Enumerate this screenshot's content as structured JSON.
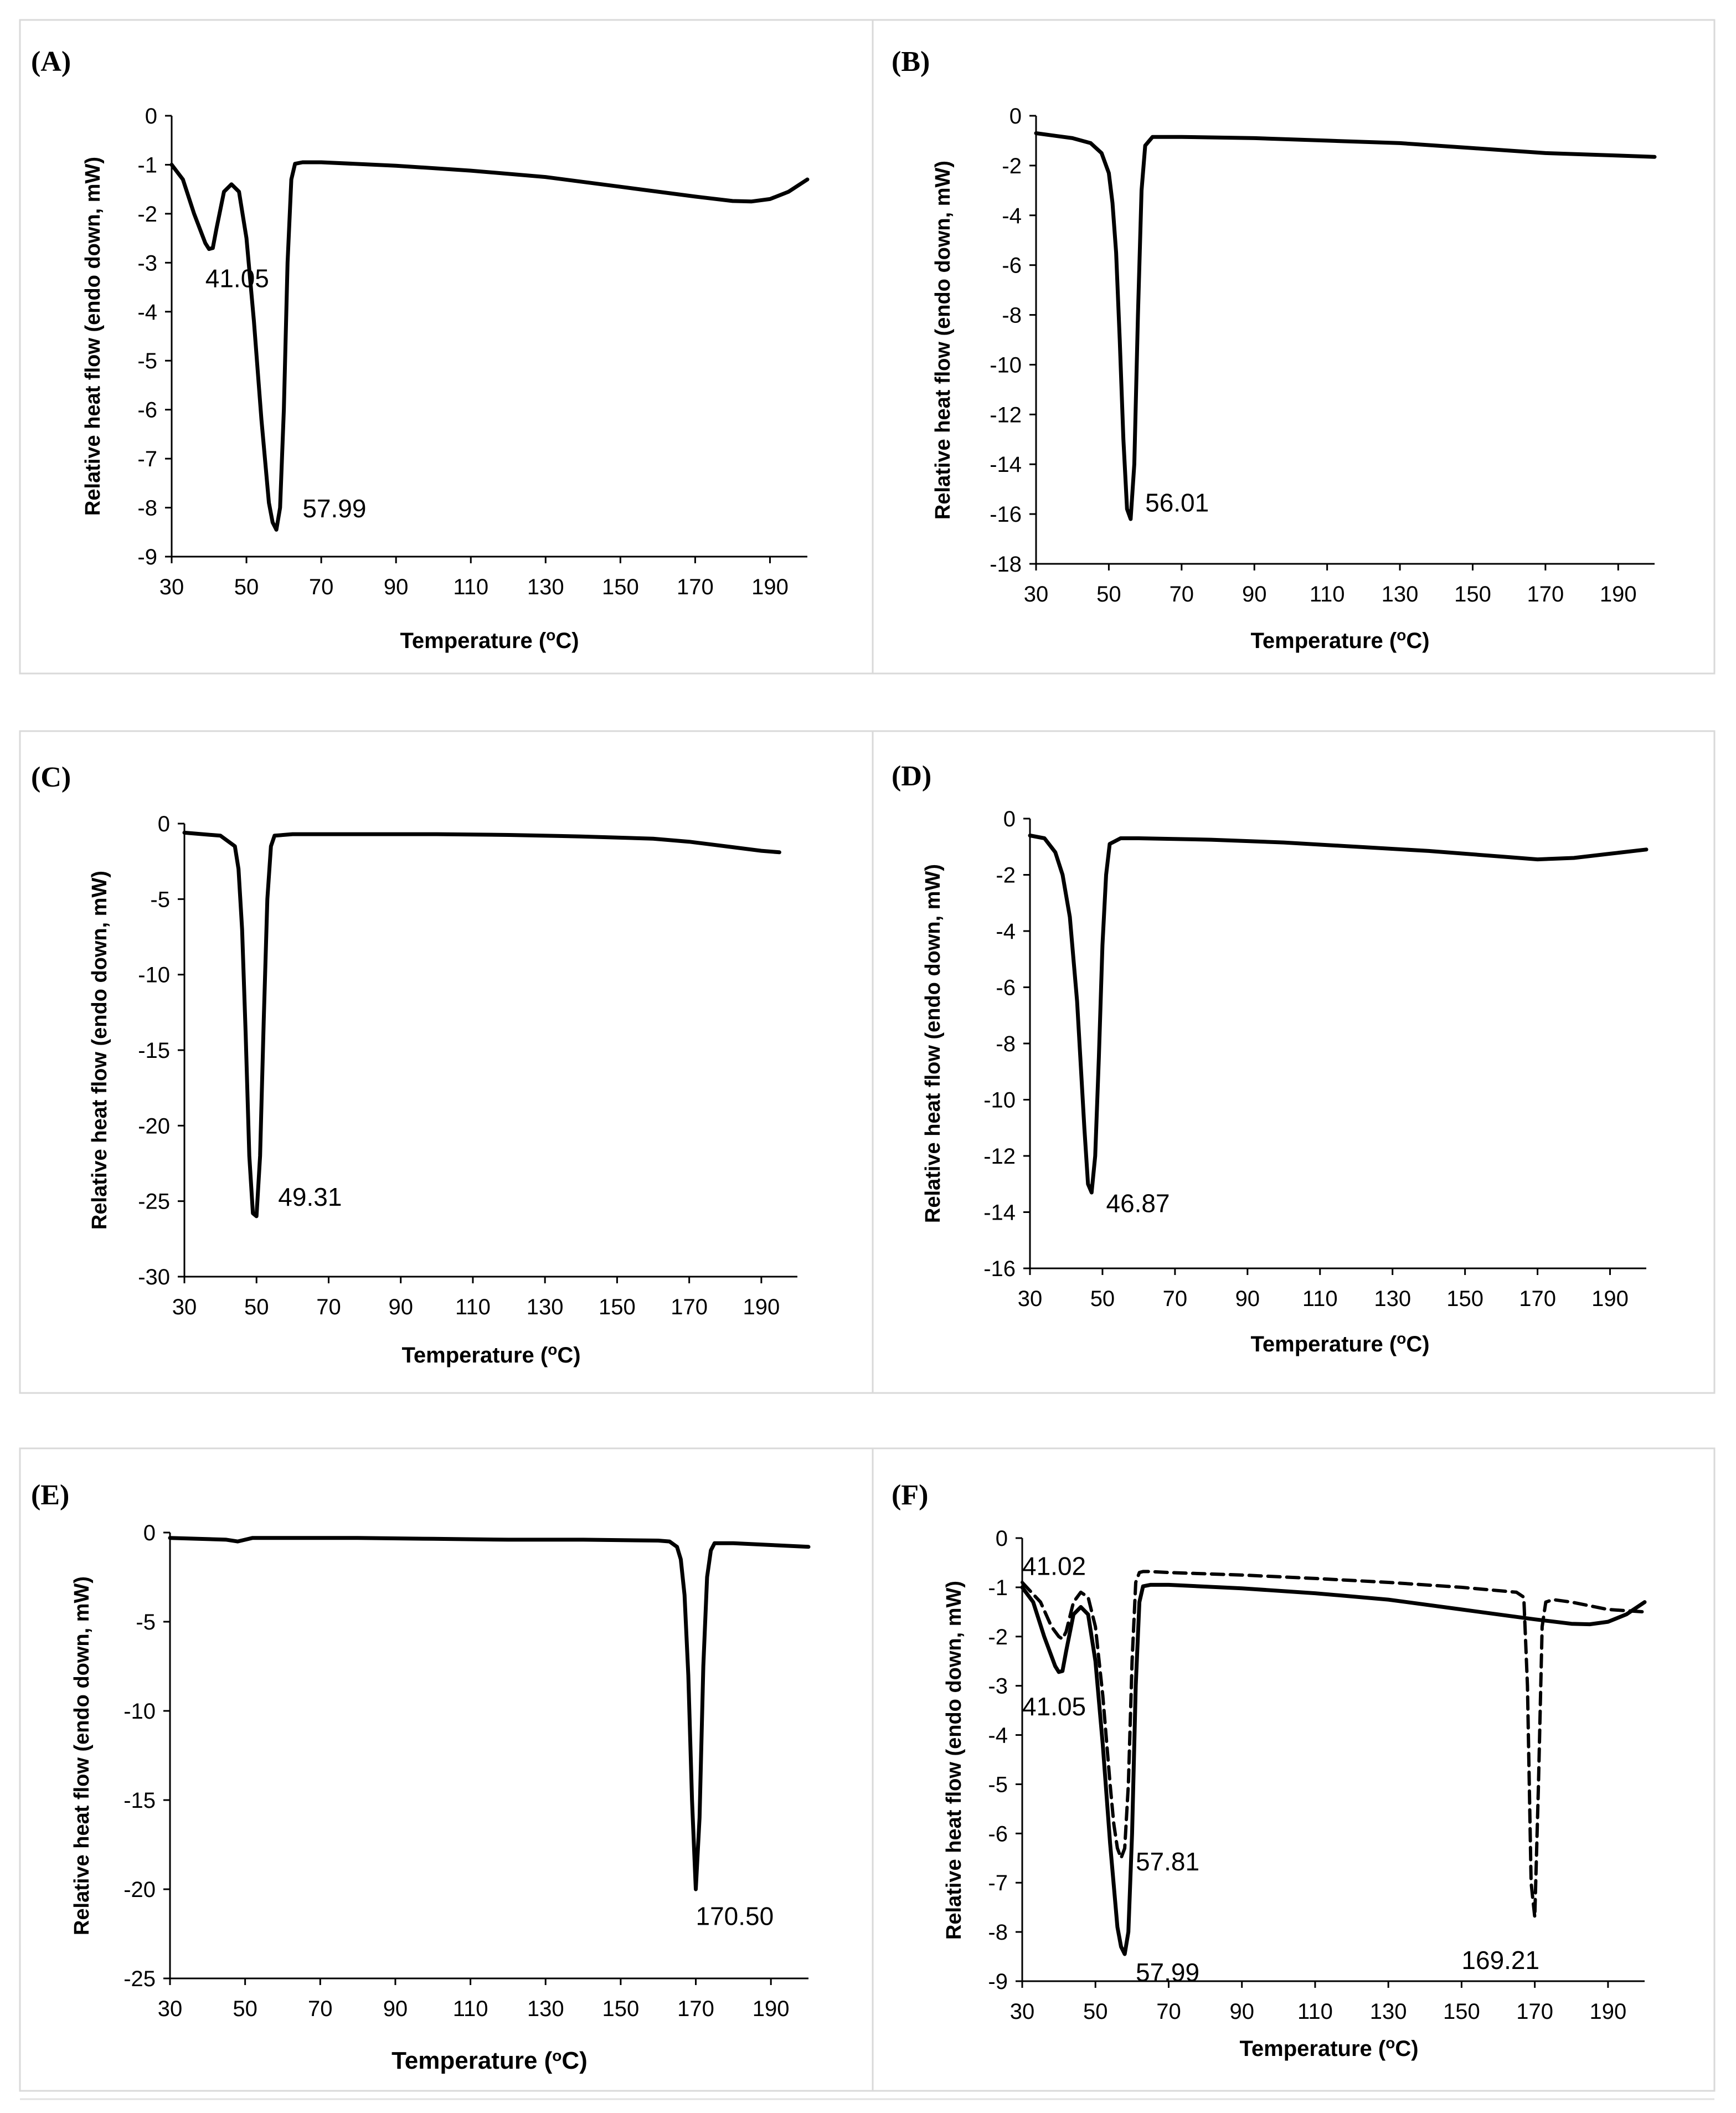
{
  "chart_data": [
    {
      "type": "line",
      "panel_label": "(A)",
      "xlabel": "Temperature (",
      "xlabel_sup": "o",
      "xlabel_unit": "C)",
      "ylabel": "Relative  heat flow (endo down, mW)",
      "xlim": [
        30,
        200
      ],
      "ylim": [
        -9,
        0
      ],
      "xticks": [
        "30",
        "50",
        "70",
        "90",
        "110",
        "130",
        "150",
        "170",
        "190"
      ],
      "yticks": [
        "0",
        "-1",
        "-2",
        "-3",
        "-4",
        "-5",
        "-6",
        "-7",
        "-8",
        "-9"
      ],
      "series": [
        {
          "name": "curve",
          "style": "solid",
          "x": [
            30,
            33,
            36,
            39,
            40,
            41,
            42,
            44,
            46,
            48,
            50,
            52,
            54,
            56,
            57,
            58,
            59,
            60,
            61,
            62,
            63,
            65,
            70,
            90,
            110,
            130,
            150,
            170,
            180,
            185,
            190,
            195,
            200
          ],
          "y": [
            -1.0,
            -1.3,
            -2.0,
            -2.6,
            -2.72,
            -2.7,
            -2.3,
            -1.55,
            -1.4,
            -1.55,
            -2.5,
            -4.2,
            -6.2,
            -7.9,
            -8.3,
            -8.45,
            -8.0,
            -6.0,
            -3.0,
            -1.3,
            -0.98,
            -0.95,
            -0.95,
            -1.02,
            -1.12,
            -1.25,
            -1.45,
            -1.65,
            -1.74,
            -1.75,
            -1.7,
            -1.55,
            -1.3
          ]
        }
      ],
      "annotations": [
        {
          "text": "41.05",
          "x": 39,
          "y": -3.5
        },
        {
          "text": "57.99",
          "x": 65,
          "y": -8.2
        }
      ]
    },
    {
      "type": "line",
      "panel_label": "(B)",
      "xlabel": "Temperature (",
      "xlabel_sup": "o",
      "xlabel_unit": "C)",
      "ylabel": "Relative  heat flow (endo down, mW)",
      "xlim": [
        30,
        200
      ],
      "ylim": [
        -18,
        0
      ],
      "xticks": [
        "30",
        "50",
        "70",
        "90",
        "110",
        "130",
        "150",
        "170",
        "190"
      ],
      "yticks": [
        "0",
        "-2",
        "-4",
        "-6",
        "-8",
        "-10",
        "-12",
        "-14",
        "-16",
        "-18"
      ],
      "series": [
        {
          "name": "curve",
          "style": "solid",
          "x": [
            30,
            40,
            45,
            48,
            50,
            51,
            52,
            53,
            54,
            55,
            56,
            57,
            58,
            59,
            60,
            62,
            70,
            90,
            110,
            130,
            150,
            170,
            190,
            200
          ],
          "y": [
            -0.7,
            -0.9,
            -1.1,
            -1.5,
            -2.3,
            -3.5,
            -5.5,
            -9.0,
            -13.0,
            -15.8,
            -16.2,
            -14.0,
            -8.0,
            -3.0,
            -1.2,
            -0.85,
            -0.85,
            -0.9,
            -1.0,
            -1.1,
            -1.3,
            -1.5,
            -1.6,
            -1.65
          ]
        }
      ],
      "annotations": [
        {
          "text": "56.01",
          "x": 60,
          "y": -15.9
        }
      ]
    },
    {
      "type": "line",
      "panel_label": "(C)",
      "xlabel": "Temperature (",
      "xlabel_sup": "o",
      "xlabel_unit": "C)",
      "ylabel": "Relative  heat flow (endo down, mW)",
      "xlim": [
        30,
        200
      ],
      "ylim": [
        -30,
        0
      ],
      "xticks": [
        "30",
        "50",
        "70",
        "90",
        "110",
        "130",
        "150",
        "170",
        "190"
      ],
      "yticks": [
        "0",
        "-5",
        "-10",
        "-15",
        "-20",
        "-25",
        "-30"
      ],
      "series": [
        {
          "name": "curve",
          "style": "solid",
          "x": [
            30,
            40,
            44,
            45,
            46,
            47,
            48,
            49,
            50,
            51,
            52,
            53,
            54,
            55,
            60,
            80,
            100,
            120,
            140,
            160,
            170,
            180,
            190,
            195
          ],
          "y": [
            -0.6,
            -0.8,
            -1.5,
            -3.0,
            -7.0,
            -14.0,
            -22.0,
            -25.8,
            -26.0,
            -22.0,
            -13.0,
            -5.0,
            -1.5,
            -0.8,
            -0.7,
            -0.7,
            -0.7,
            -0.75,
            -0.85,
            -1.0,
            -1.2,
            -1.5,
            -1.8,
            -1.9
          ]
        }
      ],
      "annotations": [
        {
          "text": "49.31",
          "x": 56,
          "y": -25.3
        }
      ]
    },
    {
      "type": "line",
      "panel_label": "(D)",
      "xlabel": "Temperature (",
      "xlabel_sup": "o",
      "xlabel_unit": "C)",
      "ylabel": "Relative  heat flow (endo down, mW)",
      "xlim": [
        30,
        200
      ],
      "ylim": [
        -16,
        0
      ],
      "xticks": [
        "30",
        "50",
        "70",
        "90",
        "110",
        "130",
        "150",
        "170",
        "190"
      ],
      "yticks": [
        "0",
        "-2",
        "-4",
        "-6",
        "-8",
        "-10",
        "-12",
        "-14",
        "-16"
      ],
      "series": [
        {
          "name": "curve",
          "style": "solid",
          "x": [
            30,
            34,
            37,
            39,
            41,
            43,
            45,
            46,
            47,
            48,
            49,
            50,
            51,
            52,
            55,
            60,
            80,
            100,
            120,
            140,
            160,
            170,
            180,
            190,
            200
          ],
          "y": [
            -0.6,
            -0.7,
            -1.2,
            -2.0,
            -3.5,
            -6.5,
            -11.0,
            -13.0,
            -13.3,
            -12.0,
            -8.5,
            -4.5,
            -2.0,
            -0.9,
            -0.7,
            -0.7,
            -0.75,
            -0.85,
            -1.0,
            -1.15,
            -1.35,
            -1.45,
            -1.4,
            -1.25,
            -1.1
          ]
        }
      ],
      "annotations": [
        {
          "text": "46.87",
          "x": 51,
          "y": -14.0
        }
      ]
    },
    {
      "type": "line",
      "panel_label": "(E)",
      "xlabel": "Temperature (",
      "xlabel_sup": "o",
      "xlabel_unit": "C)",
      "ylabel": "Relative  heat flow (endo down, mW)",
      "xlim": [
        30,
        200
      ],
      "ylim": [
        -25,
        0
      ],
      "xticks": [
        "30",
        "50",
        "70",
        "90",
        "110",
        "130",
        "150",
        "170",
        "190"
      ],
      "yticks": [
        "0",
        "-5",
        "-10",
        "-15",
        "-20",
        "-25"
      ],
      "series": [
        {
          "name": "curve",
          "style": "solid",
          "x": [
            30,
            45,
            48,
            52,
            60,
            80,
            100,
            120,
            140,
            160,
            163,
            165,
            166,
            167,
            168,
            169,
            170,
            171,
            172,
            173,
            174,
            175,
            180,
            190,
            200
          ],
          "y": [
            -0.3,
            -0.4,
            -0.5,
            -0.3,
            -0.3,
            -0.3,
            -0.35,
            -0.4,
            -0.4,
            -0.45,
            -0.5,
            -0.8,
            -1.5,
            -3.5,
            -8.0,
            -15.0,
            -20.0,
            -16.0,
            -7.5,
            -2.5,
            -1.0,
            -0.6,
            -0.6,
            -0.7,
            -0.8
          ]
        }
      ],
      "annotations": [
        {
          "text": "170.50",
          "x": 170,
          "y": -22
        }
      ]
    },
    {
      "type": "line",
      "panel_label": "(F)",
      "xlabel": "Temperature (",
      "xlabel_sup": "o",
      "xlabel_unit": "C)",
      "ylabel": "Relative  heat flow (endo down, mW)",
      "xlim": [
        30,
        200
      ],
      "ylim": [
        -9,
        0
      ],
      "xticks": [
        "30",
        "50",
        "70",
        "90",
        "110",
        "130",
        "150",
        "170",
        "190"
      ],
      "yticks": [
        "0",
        "-1",
        "-2",
        "-3",
        "-4",
        "-5",
        "-6",
        "-7",
        "-8",
        "-9"
      ],
      "series": [
        {
          "name": "solid",
          "style": "solid",
          "x": [
            30,
            33,
            36,
            39,
            40,
            41,
            42,
            44,
            46,
            48,
            50,
            52,
            54,
            56,
            57,
            58,
            59,
            60,
            61,
            62,
            63,
            65,
            70,
            90,
            110,
            130,
            150,
            170,
            180,
            185,
            190,
            195,
            200
          ],
          "y": [
            -1.0,
            -1.3,
            -2.0,
            -2.6,
            -2.72,
            -2.7,
            -2.3,
            -1.55,
            -1.4,
            -1.55,
            -2.5,
            -4.2,
            -6.2,
            -7.9,
            -8.3,
            -8.45,
            -8.0,
            -6.0,
            -3.0,
            -1.3,
            -0.98,
            -0.95,
            -0.95,
            -1.02,
            -1.12,
            -1.25,
            -1.45,
            -1.65,
            -1.74,
            -1.75,
            -1.7,
            -1.55,
            -1.3
          ]
        },
        {
          "name": "dashed",
          "style": "dashed",
          "x": [
            30,
            35,
            38,
            40,
            41,
            42,
            44,
            46,
            48,
            50,
            52,
            54,
            55,
            56,
            57,
            58,
            59,
            60,
            61,
            62,
            63,
            65,
            70,
            90,
            110,
            130,
            150,
            165,
            167,
            168,
            169,
            170,
            171,
            172,
            173,
            175,
            180,
            190,
            200
          ],
          "y": [
            -0.9,
            -1.3,
            -1.8,
            -2.0,
            -2.05,
            -1.9,
            -1.3,
            -1.1,
            -1.2,
            -1.8,
            -3.2,
            -5.0,
            -5.8,
            -6.3,
            -6.5,
            -6.3,
            -5.0,
            -2.5,
            -0.9,
            -0.7,
            -0.68,
            -0.68,
            -0.7,
            -0.75,
            -0.82,
            -0.9,
            -1.0,
            -1.1,
            -1.2,
            -3.0,
            -7.0,
            -7.7,
            -5.0,
            -1.8,
            -1.3,
            -1.25,
            -1.3,
            -1.45,
            -1.5
          ]
        }
      ],
      "annotations": [
        {
          "text": "41.02",
          "x": 30,
          "y": -0.75
        },
        {
          "text": "41.05",
          "x": 30,
          "y": -3.6
        },
        {
          "text": "57.81",
          "x": 61,
          "y": -6.75
        },
        {
          "text": "57.99",
          "x": 61,
          "y": -9.0
        },
        {
          "text": "169.21",
          "x": 150,
          "y": -8.75
        }
      ]
    }
  ]
}
